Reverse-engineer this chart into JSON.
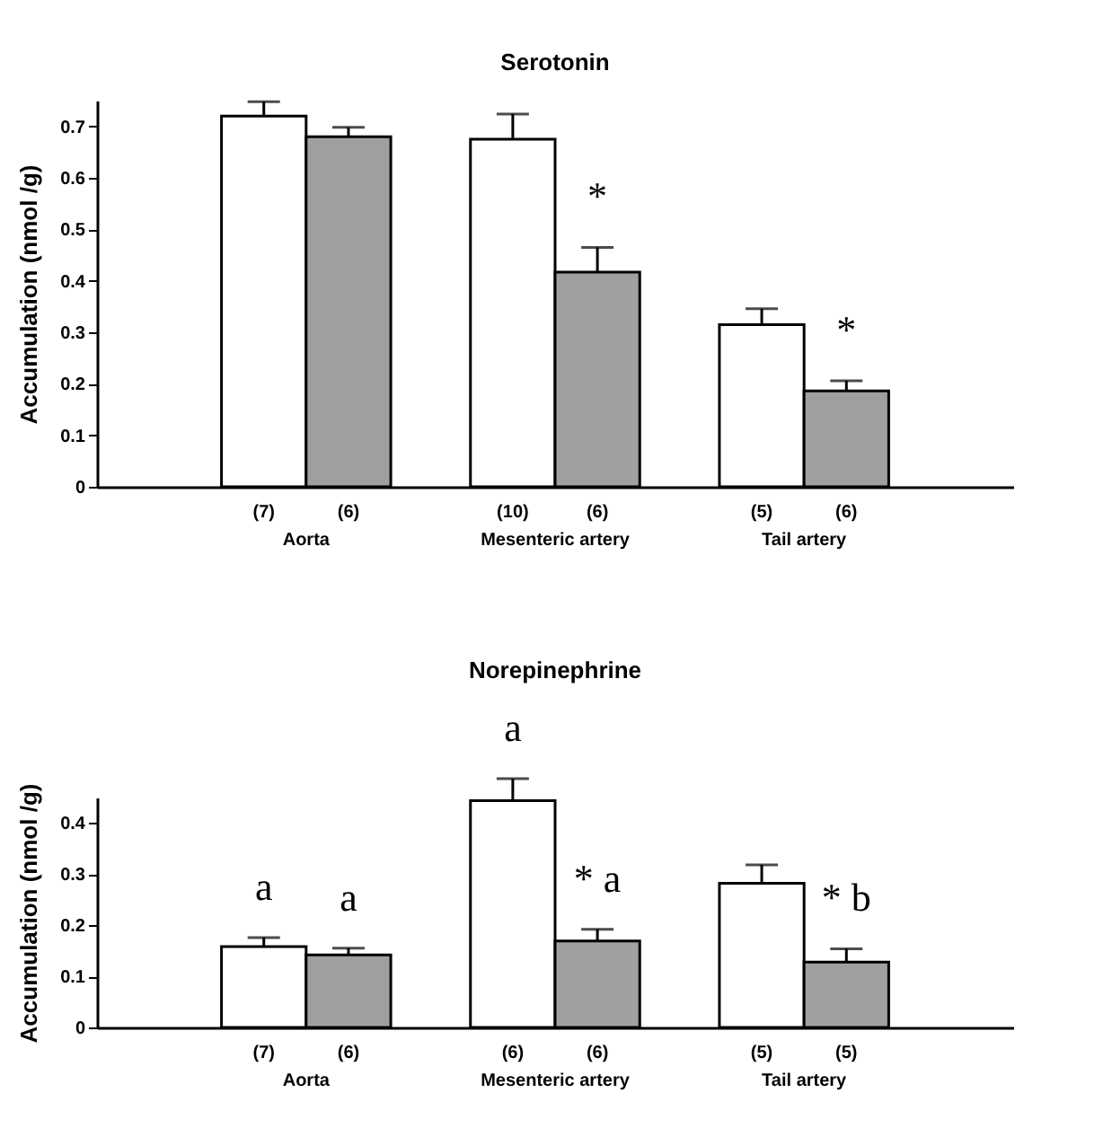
{
  "chart_data": [
    {
      "type": "bar",
      "title": "Serotonin",
      "ylabel": "Accumulation (nmol /g)",
      "categories": [
        "Aorta",
        "Mesenteric artery",
        "Tail artery"
      ],
      "series": [
        {
          "color": "#ffffff",
          "values": [
            0.72,
            0.675,
            0.315
          ],
          "errors": [
            0.028,
            0.049,
            0.031
          ],
          "value_labels": [
            null,
            null,
            null
          ]
        },
        {
          "color": "#a0a0a0",
          "values": [
            0.68,
            0.417,
            0.186
          ],
          "errors": [
            0.018,
            0.048,
            0.02
          ],
          "value_labels": [
            null,
            "*",
            "*"
          ]
        }
      ],
      "ylim": [
        0,
        0.75
      ],
      "yticks": [
        0,
        0.1,
        0.2,
        0.3,
        0.4,
        0.5,
        0.6,
        0.7
      ],
      "annotations": [
        "(7)",
        "(6)",
        "(10)",
        "(6)",
        "(5)",
        "(6)"
      ]
    },
    {
      "type": "bar",
      "title": "Norepinephrine",
      "ylabel": "Accumulation (nmol /g)",
      "categories": [
        "Aorta",
        "Mesenteric artery",
        "Tail artery"
      ],
      "series": [
        {
          "color": "#ffffff",
          "values": [
            0.158,
            0.444,
            0.282
          ],
          "errors": [
            0.018,
            0.043,
            0.036
          ],
          "value_labels": [
            "a",
            "a",
            null
          ]
        },
        {
          "color": "#a0a0a0",
          "values": [
            0.142,
            0.169,
            0.128
          ],
          "errors": [
            0.013,
            0.023,
            0.026
          ],
          "value_labels": [
            "a",
            "* a",
            "* b"
          ]
        }
      ],
      "ylim": [
        0,
        0.45
      ],
      "yticks": [
        0,
        0.1,
        0.2,
        0.3,
        0.4
      ],
      "annotations": [
        "(7)",
        "(6)",
        "(6)",
        "(6)",
        "(5)",
        "(5)"
      ]
    }
  ]
}
